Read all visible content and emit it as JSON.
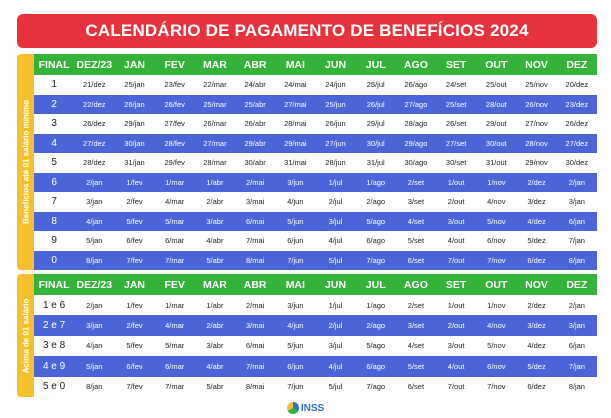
{
  "title": "CALENDÁRIO DE PAGAMENTO DE BENEFÍCIOS 2024",
  "colors": {
    "title_bg": "#e8333c",
    "header_bg": "#35b23a",
    "side_bg": "#f5c02b",
    "blue_row": "#4b64d8"
  },
  "section1": {
    "side_label": "Benefícios até 01 salário mínimo",
    "headers": [
      "FINAL",
      "DEZ/23",
      "JAN",
      "FEV",
      "MAR",
      "ABR",
      "MAI",
      "JUN",
      "JUL",
      "AGO",
      "SET",
      "OUT",
      "NOV",
      "DEZ"
    ],
    "rows": [
      [
        "1",
        "21/dez",
        "25/jan",
        "23/fev",
        "22/mar",
        "24/abr",
        "24/mai",
        "24/jun",
        "25/jul",
        "26/ago",
        "24/set",
        "25/out",
        "25/nov",
        "20/dez"
      ],
      [
        "2",
        "22/dez",
        "26/jan",
        "26/fev",
        "25/mar",
        "25/abr",
        "27/mai",
        "25/jun",
        "26/jul",
        "27/ago",
        "25/set",
        "28/out",
        "26/nov",
        "23/dez"
      ],
      [
        "3",
        "26/dez",
        "29/jan",
        "27/fev",
        "26/mar",
        "26/abr",
        "28/mai",
        "26/jun",
        "29/jul",
        "28/ago",
        "26/set",
        "29/out",
        "27/nov",
        "26/dez"
      ],
      [
        "4",
        "27/dez",
        "30/jan",
        "28/fev",
        "27/mar",
        "29/abr",
        "29/mai",
        "27/jun",
        "30/jul",
        "29/ago",
        "27/set",
        "30/out",
        "28/nov",
        "27/dez"
      ],
      [
        "5",
        "28/dez",
        "31/jan",
        "29/fev",
        "28/mar",
        "30/abr",
        "31/mai",
        "28/jun",
        "31/jul",
        "30/ago",
        "30/set",
        "31/out",
        "29/nov",
        "30/dez"
      ],
      [
        "6",
        "2/jan",
        "1/fev",
        "1/mar",
        "1/abr",
        "2/mai",
        "3/jun",
        "1/jul",
        "1/ago",
        "2/set",
        "1/out",
        "1/nov",
        "2/dez",
        "2/jan"
      ],
      [
        "7",
        "3/jan",
        "2/fev",
        "4/mar",
        "2/abr",
        "3/mai",
        "4/jun",
        "2/jul",
        "2/ago",
        "3/set",
        "2/out",
        "4/nov",
        "3/dez",
        "3/jan"
      ],
      [
        "8",
        "4/jan",
        "5/fev",
        "5/mar",
        "3/abr",
        "6/mai",
        "5/jun",
        "3/jul",
        "5/ago",
        "4/set",
        "3/out",
        "5/nov",
        "4/dez",
        "6/jan"
      ],
      [
        "9",
        "5/jan",
        "6/fev",
        "6/mar",
        "4/abr",
        "7/mai",
        "6/jun",
        "4/jul",
        "6/ago",
        "5/set",
        "4/out",
        "6/nov",
        "5/dez",
        "7/jan"
      ],
      [
        "0",
        "8/jan",
        "7/fev",
        "7/mar",
        "5/abr",
        "8/mai",
        "7/jun",
        "5/jul",
        "7/ago",
        "6/set",
        "7/out",
        "7/nov",
        "6/dez",
        "8/jan"
      ]
    ]
  },
  "section2": {
    "side_label": "Acima de 01 salário",
    "headers": [
      "FINAL",
      "DEZ/23",
      "JAN",
      "FEV",
      "MAR",
      "ABR",
      "MAI",
      "JUN",
      "JUL",
      "AGO",
      "SET",
      "OUT",
      "NOV",
      "DEZ"
    ],
    "rows": [
      [
        "1 e 6",
        "2/jan",
        "1/fev",
        "1/mar",
        "1/abr",
        "2/mai",
        "3/jun",
        "1/jul",
        "1/ago",
        "2/set",
        "1/out",
        "1/nov",
        "2/dez",
        "2/jan"
      ],
      [
        "2 e 7",
        "3/jan",
        "2/fev",
        "4/mar",
        "2/abr",
        "3/mai",
        "4/jun",
        "2/jul",
        "2/ago",
        "3/set",
        "2/out",
        "4/nov",
        "3/dez",
        "3/jan"
      ],
      [
        "3 e 8",
        "4/jan",
        "5/fev",
        "5/mar",
        "3/abr",
        "6/mai",
        "5/jun",
        "3/jul",
        "5/ago",
        "4/set",
        "3/out",
        "5/nov",
        "4/dez",
        "6/jan"
      ],
      [
        "4 e 9",
        "5/jan",
        "6/fev",
        "6/mar",
        "4/abr",
        "7/mai",
        "6/jun",
        "4/jul",
        "6/ago",
        "5/set",
        "4/out",
        "6/nov",
        "5/dez",
        "7/jan"
      ],
      [
        "5 e 0",
        "8/jan",
        "7/fev",
        "7/mar",
        "5/abr",
        "8/mai",
        "7/jun",
        "5/jul",
        "7/ago",
        "6/set",
        "7/out",
        "7/nov",
        "6/dez",
        "8/jan"
      ]
    ]
  },
  "footer": {
    "logo_text": "INSS",
    "logo_icon": "inss-logo-icon"
  }
}
